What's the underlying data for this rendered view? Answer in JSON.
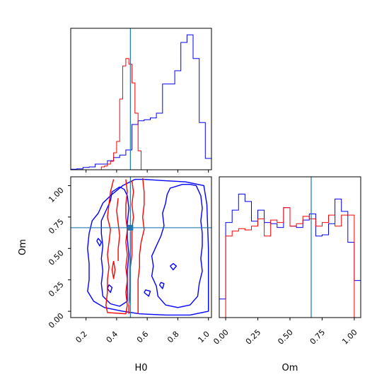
{
  "chart_data": {
    "type": "corner",
    "parameters": [
      "H0",
      "Om"
    ],
    "truth": {
      "H0": 0.49,
      "Om": 0.665
    },
    "colors": {
      "posterior_a": "#0000ff",
      "posterior_b": "#ff0000",
      "truth": "#1f77b4"
    },
    "panels": [
      {
        "id": "h0-marginal",
        "type": "histogram-step",
        "xlim": [
          0.1,
          1.02
        ],
        "xticks": [
          0.2,
          0.4,
          0.6,
          0.8,
          1.0
        ],
        "series": [
          {
            "color": "#0000ff",
            "bin_edges": [
              0.1,
              0.14,
              0.18,
              0.22,
              0.26,
              0.3,
              0.34,
              0.38,
              0.42,
              0.46,
              0.5,
              0.54,
              0.58,
              0.62,
              0.66,
              0.7,
              0.74,
              0.78,
              0.82,
              0.86,
              0.9,
              0.94,
              0.98,
              1.02
            ],
            "counts": [
              0.5,
              1,
              2.5,
              3,
              6,
              6,
              9.5,
              13,
              15.5,
              21,
              48,
              52,
              53,
              55,
              60,
              91,
              91,
              105,
              135,
              143,
              118,
              50,
              12
            ]
          },
          {
            "color": "#ff0000",
            "bin_edges": [
              0.3,
              0.32,
              0.34,
              0.36,
              0.38,
              0.4,
              0.42,
              0.44,
              0.46,
              0.48,
              0.5,
              0.52,
              0.54,
              0.56,
              0.58
            ],
            "counts": [
              3,
              4,
              6,
              9,
              18,
              30,
              75,
              110,
              118,
              112,
              92,
              60,
              20,
              0
            ]
          }
        ]
      },
      {
        "id": "om-marginal",
        "type": "histogram-step",
        "xlim": [
          -0.05,
          1.05
        ],
        "xticks": [
          0.0,
          0.25,
          0.5,
          0.75,
          1.0
        ],
        "xticklabels": [
          "0.00",
          "0.25",
          "0.50",
          "0.75",
          "1.00"
        ],
        "series": [
          {
            "color": "#0000ff",
            "bin_edges": [
              -0.05,
              0.0,
              0.05,
              0.1,
              0.15,
              0.2,
              0.25,
              0.3,
              0.35,
              0.4,
              0.45,
              0.5,
              0.55,
              0.6,
              0.65,
              0.7,
              0.75,
              0.8,
              0.85,
              0.9,
              0.95,
              1.0,
              1.05
            ],
            "counts": [
              0.15,
              0.77,
              0.87,
              1.0,
              0.94,
              0.78,
              0.87,
              0.77,
              0.76,
              0.73,
              0.89,
              0.74,
              0.73,
              0.79,
              0.84,
              0.66,
              0.67,
              0.76,
              0.96,
              0.86,
              0.61,
              0.3
            ]
          },
          {
            "color": "#ff0000",
            "bin_edges": [
              0.0,
              0.05,
              0.1,
              0.15,
              0.2,
              0.25,
              0.3,
              0.35,
              0.4,
              0.45,
              0.5,
              0.55,
              0.6,
              0.65,
              0.7,
              0.75,
              0.8,
              0.85,
              0.9,
              0.95,
              1.0
            ],
            "counts": [
              0.66,
              0.7,
              0.72,
              0.71,
              0.74,
              0.8,
              0.66,
              0.79,
              0.77,
              0.89,
              0.74,
              0.76,
              0.82,
              0.8,
              0.74,
              0.77,
              0.83,
              0.74,
              0.83,
              0.83
            ]
          }
        ]
      },
      {
        "id": "h0-om-joint",
        "type": "contour",
        "xlim": [
          0.1,
          1.02
        ],
        "ylim": [
          -0.05,
          1.07
        ],
        "xticks": [
          0.2,
          0.4,
          0.6,
          0.8,
          1.0
        ],
        "xticklabels": [
          "0.2",
          "0.4",
          "0.6",
          "0.8",
          "1.0"
        ],
        "yticks": [
          0.0,
          0.25,
          0.5,
          0.75,
          1.0
        ],
        "yticklabels": [
          "0.00",
          "0.25",
          "0.50",
          "0.75",
          "1.00"
        ],
        "xlabel": "H0",
        "ylabel": "Om",
        "contours": [
          {
            "color": "#0000ff",
            "points": [
              [
                0.52,
                1.05
              ],
              [
                0.44,
                1.0
              ],
              [
                0.36,
                0.92
              ],
              [
                0.31,
                0.86
              ],
              [
                0.28,
                0.78
              ],
              [
                0.24,
                0.72
              ],
              [
                0.22,
                0.62
              ],
              [
                0.21,
                0.5
              ],
              [
                0.22,
                0.38
              ],
              [
                0.22,
                0.25
              ],
              [
                0.21,
                0.16
              ],
              [
                0.25,
                0.08
              ],
              [
                0.32,
                0.03
              ],
              [
                0.44,
                0.0
              ],
              [
                0.55,
                -0.02
              ],
              [
                0.72,
                -0.03
              ],
              [
                0.88,
                -0.03
              ],
              [
                1.0,
                0.0
              ],
              [
                1.0,
                0.5
              ],
              [
                0.99,
                0.85
              ],
              [
                0.97,
                1.0
              ],
              [
                0.85,
                1.03
              ],
              [
                0.7,
                1.04
              ],
              [
                0.58,
                1.05
              ],
              [
                0.52,
                1.05
              ]
            ]
          },
          {
            "color": "#0000ff",
            "points": [
              [
                0.83,
                1.01
              ],
              [
                0.75,
                0.98
              ],
              [
                0.73,
                0.93
              ],
              [
                0.72,
                0.86
              ],
              [
                0.7,
                0.78
              ],
              [
                0.71,
                0.68
              ],
              [
                0.69,
                0.6
              ],
              [
                0.66,
                0.52
              ],
              [
                0.63,
                0.44
              ],
              [
                0.64,
                0.36
              ],
              [
                0.63,
                0.28
              ],
              [
                0.66,
                0.2
              ],
              [
                0.67,
                0.12
              ],
              [
                0.72,
                0.05
              ],
              [
                0.8,
                0.03
              ],
              [
                0.88,
                0.05
              ],
              [
                0.93,
                0.12
              ],
              [
                0.94,
                0.22
              ],
              [
                0.96,
                0.32
              ],
              [
                0.95,
                0.42
              ],
              [
                0.96,
                0.52
              ],
              [
                0.96,
                0.62
              ],
              [
                0.95,
                0.72
              ],
              [
                0.96,
                0.82
              ],
              [
                0.95,
                0.92
              ],
              [
                0.92,
                1.0
              ],
              [
                0.88,
                1.01
              ],
              [
                0.83,
                1.01
              ]
            ]
          },
          {
            "color": "#0000ff",
            "points": [
              [
                0.42,
                0.99
              ],
              [
                0.37,
                0.95
              ],
              [
                0.36,
                0.88
              ],
              [
                0.33,
                0.8
              ],
              [
                0.3,
                0.72
              ],
              [
                0.3,
                0.62
              ],
              [
                0.31,
                0.52
              ],
              [
                0.3,
                0.42
              ],
              [
                0.31,
                0.32
              ],
              [
                0.3,
                0.22
              ],
              [
                0.31,
                0.12
              ],
              [
                0.36,
                0.06
              ],
              [
                0.42,
                0.04
              ],
              [
                0.47,
                0.08
              ],
              [
                0.47,
                0.2
              ],
              [
                0.47,
                0.32
              ],
              [
                0.48,
                0.45
              ],
              [
                0.47,
                0.58
              ],
              [
                0.47,
                0.7
              ],
              [
                0.48,
                0.82
              ],
              [
                0.47,
                0.92
              ],
              [
                0.45,
                0.97
              ],
              [
                0.42,
                0.99
              ]
            ]
          },
          {
            "color": "#0000ff",
            "points": [
              [
                0.27,
                0.56
              ],
              [
                0.29,
                0.52
              ],
              [
                0.3,
                0.55
              ],
              [
                0.28,
                0.58
              ],
              [
                0.27,
                0.56
              ]
            ]
          },
          {
            "color": "#0000ff",
            "points": [
              [
                0.75,
                0.36
              ],
              [
                0.77,
                0.33
              ],
              [
                0.79,
                0.36
              ],
              [
                0.77,
                0.38
              ],
              [
                0.75,
                0.36
              ]
            ]
          },
          {
            "color": "#0000ff",
            "points": [
              [
                0.34,
                0.18
              ],
              [
                0.36,
                0.15
              ],
              [
                0.37,
                0.19
              ],
              [
                0.35,
                0.21
              ],
              [
                0.34,
                0.18
              ]
            ]
          },
          {
            "color": "#0000ff",
            "points": [
              [
                0.58,
                0.15
              ],
              [
                0.61,
                0.12
              ],
              [
                0.62,
                0.16
              ],
              [
                0.59,
                0.17
              ],
              [
                0.58,
                0.15
              ]
            ]
          },
          {
            "color": "#0000ff",
            "points": [
              [
                0.68,
                0.21
              ],
              [
                0.7,
                0.18
              ],
              [
                0.71,
                0.22
              ],
              [
                0.69,
                0.23
              ],
              [
                0.68,
                0.21
              ]
            ]
          },
          {
            "color": "#ff0000",
            "points": [
              [
                0.38,
                1.05
              ],
              [
                0.36,
                0.95
              ],
              [
                0.35,
                0.85
              ],
              [
                0.34,
                0.75
              ],
              [
                0.36,
                0.65
              ],
              [
                0.35,
                0.55
              ],
              [
                0.34,
                0.45
              ],
              [
                0.35,
                0.35
              ],
              [
                0.34,
                0.25
              ],
              [
                0.34,
                0.15
              ],
              [
                0.33,
                0.05
              ],
              [
                0.34,
                -0.01
              ],
              [
                0.46,
                -0.02
              ],
              [
                0.47,
                0.05
              ],
              [
                0.46,
                0.15
              ],
              [
                0.47,
                0.25
              ],
              [
                0.46,
                0.35
              ],
              [
                0.47,
                0.45
              ],
              [
                0.46,
                0.55
              ],
              [
                0.47,
                0.65
              ],
              [
                0.46,
                0.75
              ],
              [
                0.46,
                0.85
              ],
              [
                0.47,
                0.95
              ],
              [
                0.46,
                1.05
              ]
            ]
          },
          {
            "color": "#ff0000",
            "points": [
              [
                0.57,
                1.06
              ],
              [
                0.58,
                0.95
              ],
              [
                0.58,
                0.85
              ],
              [
                0.57,
                0.75
              ],
              [
                0.58,
                0.65
              ],
              [
                0.56,
                0.55
              ],
              [
                0.55,
                0.45
              ],
              [
                0.55,
                0.35
              ],
              [
                0.54,
                0.25
              ],
              [
                0.54,
                0.15
              ],
              [
                0.54,
                0.05
              ],
              [
                0.54,
                -0.02
              ]
            ]
          },
          {
            "color": "#ff0000",
            "points": [
              [
                0.5,
                1.04
              ],
              [
                0.51,
                0.95
              ],
              [
                0.5,
                0.85
              ],
              [
                0.51,
                0.75
              ],
              [
                0.5,
                0.65
              ],
              [
                0.5,
                0.55
              ],
              [
                0.5,
                0.45
              ],
              [
                0.49,
                0.35
              ],
              [
                0.49,
                0.25
              ],
              [
                0.49,
                0.15
              ],
              [
                0.48,
                0.05
              ],
              [
                0.48,
                -0.02
              ]
            ]
          },
          {
            "color": "#ff0000",
            "points": [
              [
                0.41,
                0.9
              ],
              [
                0.4,
                0.8
              ],
              [
                0.41,
                0.7
              ],
              [
                0.42,
                0.6
              ],
              [
                0.41,
                0.5
              ],
              [
                0.41,
                0.4
              ]
            ]
          },
          {
            "color": "#ff0000",
            "points": [
              [
                0.38,
                0.4
              ],
              [
                0.37,
                0.33
              ],
              [
                0.38,
                0.26
              ],
              [
                0.39,
                0.33
              ],
              [
                0.38,
                0.4
              ]
            ]
          }
        ],
        "center_line": {
          "color": "#7f7f7f",
          "points": [
            [
              0.49,
              0.63
            ],
            [
              0.49,
              0.5
            ],
            [
              0.485,
              0.35
            ],
            [
              0.485,
              0.2
            ],
            [
              0.48,
              0.05
            ]
          ]
        }
      }
    ]
  }
}
